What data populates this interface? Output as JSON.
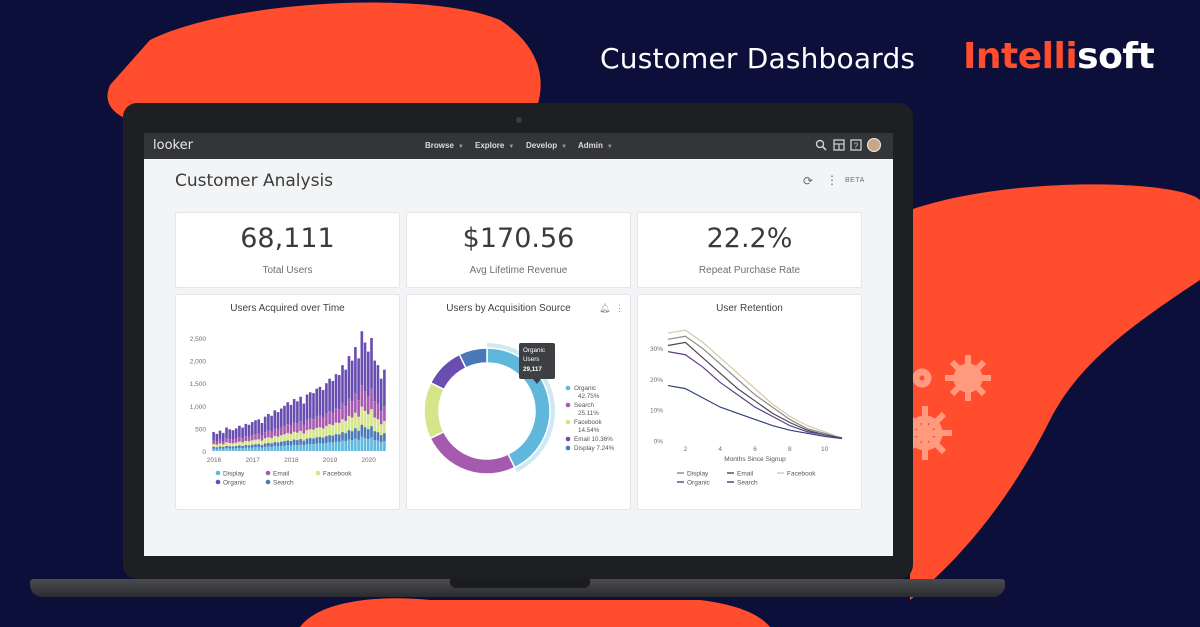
{
  "banner": {
    "headline": "Customer Dashboards",
    "logo_accent": "Intelli",
    "logo_rest": "soft",
    "accent_color": "#ff4d2e",
    "background_color": "#0b0f3a"
  },
  "app": {
    "brand": "looker",
    "nav": [
      {
        "label": "Browse"
      },
      {
        "label": "Explore"
      },
      {
        "label": "Develop"
      },
      {
        "label": "Admin"
      }
    ],
    "toolbar_icons": [
      "search-icon",
      "dashboard-icon",
      "help-icon",
      "user-avatar"
    ]
  },
  "dashboard": {
    "title": "Customer Analysis",
    "beta_label": "BETA",
    "kpis": [
      {
        "value": "68,111",
        "label": "Total Users"
      },
      {
        "value": "$170.56",
        "label": "Avg Lifetime Revenue"
      },
      {
        "value": "22.2%",
        "label": "Repeat Purchase Rate"
      }
    ],
    "tiles": [
      {
        "title": "Users Acquired over Time"
      },
      {
        "title": "Users by Acquisition Source"
      },
      {
        "title": "User Retention"
      }
    ]
  },
  "chart_data": [
    {
      "type": "bar",
      "stacked": true,
      "title": "Users Acquired over Time",
      "x_ticks": [
        "2016",
        "2017",
        "2018",
        "2019",
        "2020"
      ],
      "y_ticks": [
        "0",
        "500",
        "1,000",
        "1,500",
        "2,000",
        "2,500"
      ],
      "ylim": [
        0,
        2700
      ],
      "legend": [
        {
          "name": "Display",
          "color": "#5fb8dc"
        },
        {
          "name": "Email",
          "color": "#a55ab0"
        },
        {
          "name": "Facebook",
          "color": "#d6e58a"
        },
        {
          "name": "Organic",
          "color": "#6a4db0"
        },
        {
          "name": "Search",
          "color": "#4a78b8"
        }
      ],
      "series_order": [
        "Display",
        "Search",
        "Facebook",
        "Email",
        "Organic"
      ],
      "x_start": 2016.0,
      "x_end": 2020.5,
      "totals_by_month": [
        420,
        380,
        450,
        400,
        520,
        480,
        460,
        500,
        560,
        520,
        600,
        580,
        640,
        680,
        700,
        620,
        760,
        820,
        780,
        900,
        860,
        940,
        1000,
        1080,
        1020,
        1150,
        1100,
        1200,
        1050,
        1250,
        1300,
        1280,
        1380,
        1420,
        1350,
        1500,
        1600,
        1550,
        1700,
        1680,
        1900,
        1800,
        2100,
        2000,
        2300,
        2050,
        2650,
        2400,
        2200,
        2500,
        2000,
        1900,
        1600,
        1800
      ]
    },
    {
      "type": "pie",
      "donut": true,
      "title": "Users by Acquisition Source",
      "slices": [
        {
          "name": "Organic",
          "value": 42.75,
          "label": "42.75%",
          "color": "#5fb8dc"
        },
        {
          "name": "Search",
          "value": 25.11,
          "label": "25.11%",
          "color": "#a55ab0"
        },
        {
          "name": "Facebook",
          "value": 14.54,
          "label": "14.54%",
          "color": "#d6e58a"
        },
        {
          "name": "Email",
          "value": 10.36,
          "label": "10.36%",
          "color": "#6a4db0"
        },
        {
          "name": "Display",
          "value": 7.24,
          "label": "7.24%",
          "color": "#4a78b8"
        }
      ],
      "tooltip": {
        "line1": "Organic",
        "line2": "Users",
        "line3": "29,117"
      },
      "legend_position": "right"
    },
    {
      "type": "line",
      "title": "User Retention",
      "xlabel": "Months Since Signup",
      "x_ticks": [
        2,
        4,
        6,
        8,
        10
      ],
      "y_ticks": [
        "0%",
        "10%",
        "20%",
        "30%"
      ],
      "xlim": [
        1,
        11
      ],
      "ylim": [
        0,
        37
      ],
      "x": [
        1,
        2,
        3,
        4,
        5,
        6,
        7,
        8,
        9,
        10,
        11
      ],
      "series": [
        {
          "name": "Display",
          "color": "#8b8b8e",
          "values": [
            33,
            34,
            30,
            25,
            20,
            15,
            11,
            7,
            4,
            2.5,
            1
          ]
        },
        {
          "name": "Email",
          "color": "#4a4a4d",
          "values": [
            31,
            32,
            27,
            22,
            17,
            13,
            9,
            6,
            3.5,
            2,
            1
          ]
        },
        {
          "name": "Facebook",
          "color": "#d8c9a4",
          "values": [
            35,
            36,
            32,
            27,
            22,
            17,
            12,
            8,
            5,
            3,
            1
          ]
        },
        {
          "name": "Organic",
          "color": "#5d3f86",
          "values": [
            29,
            28,
            24,
            19,
            15,
            11,
            8,
            5,
            3,
            2,
            1
          ]
        },
        {
          "name": "Search",
          "color": "#34417a",
          "values": [
            18,
            17,
            14,
            11,
            9,
            7,
            5,
            3.5,
            2.5,
            1.5,
            0.8
          ]
        }
      ],
      "legend": [
        "Display",
        "Email",
        "Facebook",
        "Organic",
        "Search"
      ]
    }
  ]
}
